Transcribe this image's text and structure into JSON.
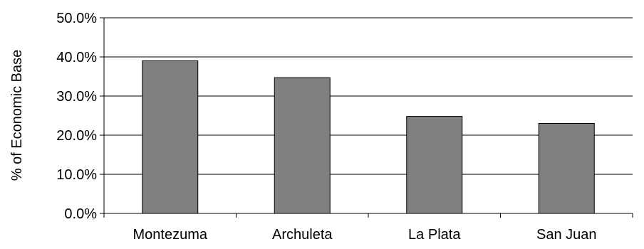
{
  "chart_data": {
    "type": "bar",
    "title": "",
    "xlabel": "",
    "ylabel": "% of Economic Base",
    "categories": [
      "Montezuma",
      "Archuleta",
      "La Plata",
      "San Juan"
    ],
    "values": [
      39.0,
      34.7,
      24.8,
      23.0
    ],
    "ylim": [
      0,
      50
    ],
    "yticks": [
      0,
      10,
      20,
      30,
      40,
      50
    ],
    "ytick_labels": [
      "0.0%",
      "10.0%",
      "20.0%",
      "30.0%",
      "40.0%",
      "50.0%"
    ],
    "grid": true,
    "legend": "none",
    "colors": {
      "bar_fill": "#808080",
      "bar_stroke": "#000000",
      "grid": "#000000",
      "axis": "#000000"
    }
  }
}
